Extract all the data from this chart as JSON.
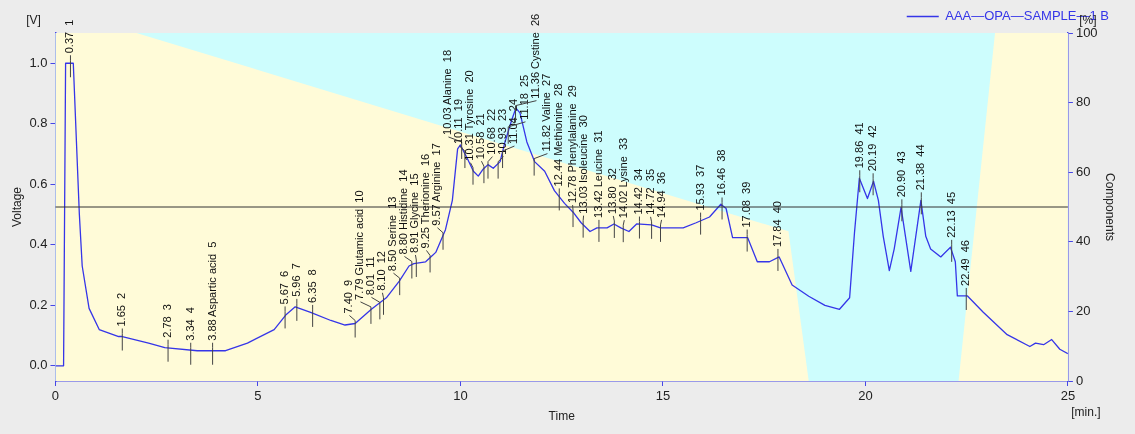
{
  "chart_data": {
    "type": "line",
    "xlabel": "Time",
    "ylabel": "Voltage",
    "y2label": "Components",
    "xlim": [
      0,
      25
    ],
    "xticks": [
      0,
      5,
      10,
      15,
      20,
      25
    ],
    "ylim": [
      -0.05,
      1.1
    ],
    "yticks": [
      {
        "value": 0,
        "label": "0.0"
      },
      {
        "value": 0.2,
        "label": "0.2"
      },
      {
        "value": 0.4,
        "label": "0.4"
      },
      {
        "value": 0.6,
        "label": "0.6"
      },
      {
        "value": 0.8,
        "label": "0.8"
      },
      {
        "value": 1,
        "label": "1.0"
      }
    ],
    "y2lim": [
      0,
      100
    ],
    "y2ticks": [
      0,
      20,
      40,
      60,
      80,
      100
    ],
    "grid": false,
    "legend": "top right",
    "ref_lines": [
      {
        "axis": "y2",
        "value": 50,
        "color": "#333333"
      }
    ],
    "series": [
      {
        "type": "area",
        "axis": "y2",
        "color": "#fffbd8",
        "x": [
          0,
          2,
          18.1,
          18.6,
          22.3,
          23.2,
          25
        ],
        "values": [
          100,
          100,
          43,
          0,
          0,
          100,
          100
        ]
      },
      {
        "type": "line",
        "name": "AAA—OPA—SAMPLE—1 B",
        "color": "#3535e8",
        "x": [
          0,
          0.2,
          0.25,
          0.44,
          0.59,
          0.66,
          0.83,
          1.08,
          1.56,
          1.65,
          2.3,
          2.7,
          3.5,
          4.2,
          4.74,
          5.4,
          5.7,
          5.92,
          6.3,
          6.8,
          7.15,
          7.4,
          7.8,
          8.17,
          8.49,
          8.73,
          8.85,
          9.14,
          9.39,
          9.63,
          9.8,
          9.93,
          10.0,
          10.17,
          10.32,
          10.44,
          10.56,
          10.68,
          10.81,
          10.98,
          11.1,
          11.27,
          11.37,
          11.47,
          11.64,
          11.83,
          12.08,
          12.32,
          12.57,
          12.8,
          12.98,
          13.2,
          13.37,
          13.62,
          13.79,
          13.96,
          14.16,
          14.35,
          14.72,
          14.94,
          15.5,
          15.82,
          16.15,
          16.43,
          16.56,
          16.72,
          17.09,
          17.33,
          17.63,
          17.87,
          18.19,
          18.6,
          19.0,
          19.36,
          19.61,
          19.73,
          19.85,
          20.05,
          20.2,
          20.32,
          20.44,
          20.59,
          20.71,
          20.88,
          21.12,
          21.37,
          21.49,
          21.61,
          21.86,
          22.1,
          22.22,
          22.27,
          22.52,
          22.91,
          23.5,
          24.06,
          24.2,
          24.4,
          24.6,
          24.8,
          25.0
        ],
        "values": [
          0,
          0,
          1.0,
          1.0,
          0.5,
          0.33,
          0.19,
          0.12,
          0.097,
          0.097,
          0.075,
          0.06,
          0.05,
          0.05,
          0.075,
          0.12,
          0.17,
          0.195,
          0.177,
          0.15,
          0.135,
          0.14,
          0.187,
          0.225,
          0.28,
          0.33,
          0.338,
          0.344,
          0.375,
          0.45,
          0.547,
          0.717,
          0.73,
          0.685,
          0.643,
          0.627,
          0.65,
          0.665,
          0.653,
          0.675,
          0.74,
          0.814,
          0.852,
          0.836,
          0.74,
          0.675,
          0.643,
          0.579,
          0.537,
          0.505,
          0.473,
          0.444,
          0.456,
          0.456,
          0.469,
          0.456,
          0.444,
          0.469,
          0.466,
          0.456,
          0.456,
          0.473,
          0.492,
          0.534,
          0.52,
          0.424,
          0.424,
          0.344,
          0.344,
          0.36,
          0.267,
          0.23,
          0.2,
          0.187,
          0.225,
          0.44,
          0.62,
          0.553,
          0.61,
          0.547,
          0.428,
          0.315,
          0.386,
          0.524,
          0.312,
          0.547,
          0.428,
          0.386,
          0.36,
          0.392,
          0.344,
          0.231,
          0.231,
          0.177,
          0.103,
          0.064,
          0.075,
          0.07,
          0.087,
          0.055,
          0.04
        ]
      }
    ],
    "annotations": [
      "[V]",
      "[%]",
      "[min.]",
      {
        "text": "0.37  1",
        "x": 0.37,
        "y": 1.0
      },
      {
        "text": "1.65  2",
        "x": 1.65,
        "y": 0.097
      },
      {
        "text": "2.78  3",
        "x": 2.78,
        "y": 0.06
      },
      {
        "text": "3.34  4",
        "x": 3.34,
        "y": 0.05
      },
      {
        "text": "3.88 Aspartic acid  5",
        "x": 3.88,
        "y": 0.05
      },
      {
        "text": "5.67  6",
        "x": 5.67,
        "y": 0.17
      },
      {
        "text": "5.96  7",
        "x": 5.96,
        "y": 0.195
      },
      {
        "text": "6.35  8",
        "x": 6.35,
        "y": 0.175
      },
      {
        "text": "7.40  9",
        "x": 7.4,
        "y": 0.14
      },
      {
        "text": "7.79 Glutamic acid  10",
        "x": 7.79,
        "y": 0.185
      },
      {
        "text": "8.01  11",
        "x": 8.01,
        "y": 0.2
      },
      {
        "text": "8.10  12",
        "x": 8.1,
        "y": 0.215
      },
      {
        "text": "8.50 Serine  13",
        "x": 8.5,
        "y": 0.28
      },
      {
        "text": "8.80 Histidine  14",
        "x": 8.8,
        "y": 0.335
      },
      {
        "text": "8.91 Glycine  15",
        "x": 8.91,
        "y": 0.34
      },
      {
        "text": "9.25 Therionine  16",
        "x": 9.25,
        "y": 0.355
      },
      {
        "text": "9.57 Arginine  17",
        "x": 9.57,
        "y": 0.43
      },
      {
        "text": "10.03 Alanine  18",
        "x": 10.03,
        "y": 0.73
      },
      {
        "text": "10.11  19",
        "x": 10.11,
        "y": 0.7
      },
      {
        "text": "10.31 Tyrosine  20",
        "x": 10.31,
        "y": 0.645
      },
      {
        "text": "10.58  21",
        "x": 10.58,
        "y": 0.65
      },
      {
        "text": "10.68  22",
        "x": 10.68,
        "y": 0.665
      },
      {
        "text": "10.93  23",
        "x": 10.93,
        "y": 0.665
      },
      {
        "text": "11.04  24",
        "x": 11.04,
        "y": 0.7
      },
      {
        "text": "11.18  25",
        "x": 11.18,
        "y": 0.78
      },
      {
        "text": "11.36 Cystine  26",
        "x": 11.36,
        "y": 0.85
      },
      {
        "text": "11.82 Valine  27",
        "x": 11.82,
        "y": 0.675
      },
      {
        "text": "12.44 Methionine  28",
        "x": 12.44,
        "y": 0.56
      },
      {
        "text": "12.78 Phenylalanine  29",
        "x": 12.78,
        "y": 0.505
      },
      {
        "text": "13.03 Isoleucine  30",
        "x": 13.03,
        "y": 0.47
      },
      {
        "text": "13.42 Leucine  31",
        "x": 13.42,
        "y": 0.456
      },
      {
        "text": "13.80  32",
        "x": 13.8,
        "y": 0.469
      },
      {
        "text": "14.02 Lysine  33",
        "x": 14.02,
        "y": 0.455
      },
      {
        "text": "14.42  34",
        "x": 14.42,
        "y": 0.467
      },
      {
        "text": "14.72  35",
        "x": 14.72,
        "y": 0.466
      },
      {
        "text": "14.94  36",
        "x": 14.94,
        "y": 0.456
      },
      {
        "text": "15.93  37",
        "x": 15.93,
        "y": 0.48
      },
      {
        "text": "16.46  38",
        "x": 16.46,
        "y": 0.53
      },
      {
        "text": "17.08  39",
        "x": 17.08,
        "y": 0.424
      },
      {
        "text": "17.84  40",
        "x": 17.84,
        "y": 0.36
      },
      {
        "text": "19.86  41",
        "x": 19.86,
        "y": 0.62
      },
      {
        "text": "20.19  42",
        "x": 20.19,
        "y": 0.61
      },
      {
        "text": "20.90  43",
        "x": 20.9,
        "y": 0.524
      },
      {
        "text": "21.38  44",
        "x": 21.38,
        "y": 0.547
      },
      {
        "text": "22.13  45",
        "x": 22.13,
        "y": 0.39
      },
      {
        "text": "22.49  46",
        "x": 22.49,
        "y": 0.231
      }
    ]
  }
}
